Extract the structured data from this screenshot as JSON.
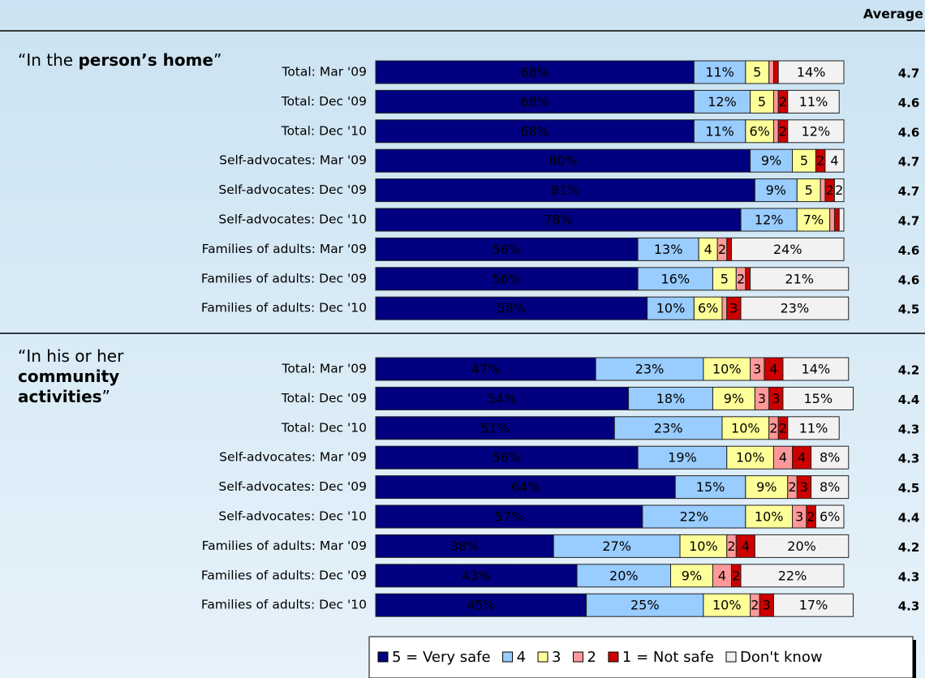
{
  "average_header": "Average",
  "chart_data": [
    {
      "type": "bar",
      "orientation": "horizontal",
      "stacked": true,
      "title_lines": [
        [
          {
            "text": "“In the "
          },
          {
            "text": "person’s home",
            "bold": true
          },
          {
            "text": "”"
          }
        ]
      ],
      "categories": [
        "Total: Mar '09",
        "Total: Dec '09",
        "Total: Dec '10",
        "Self-advocates: Mar '09",
        "Self-advocates: Dec '09",
        "Self-advocates: Dec '10",
        "Families of adults: Mar '09",
        "Families of adults: Dec '09",
        "Families of adults: Dec '10"
      ],
      "xlim": [
        0,
        100
      ],
      "averages": [
        4.7,
        4.6,
        4.6,
        4.7,
        4.7,
        4.7,
        4.6,
        4.6,
        4.5
      ],
      "series": [
        {
          "name": "5 = Very safe",
          "color": "#000080",
          "values": [
            68,
            68,
            68,
            80,
            81,
            78,
            56,
            56,
            58
          ],
          "value_labels": [
            "68%",
            "68%",
            "68%",
            "80%",
            "81%",
            "78%",
            "56%",
            "56%",
            "58%"
          ]
        },
        {
          "name": "4",
          "color": "#99ccff",
          "values": [
            11,
            12,
            11,
            9,
            9,
            12,
            13,
            16,
            10
          ],
          "value_labels": [
            "11%",
            "12%",
            "11%",
            "9%",
            "9%",
            "12%",
            "13%",
            "16%",
            "10%"
          ]
        },
        {
          "name": "3",
          "color": "#ffff99",
          "values": [
            5,
            5,
            6,
            5,
            5,
            7,
            4,
            5,
            6
          ],
          "value_labels": [
            "5",
            "5",
            "6%",
            "5",
            "5",
            "7%",
            "4",
            "5",
            "6%"
          ]
        },
        {
          "name": "2",
          "color": "#ff9999",
          "values": [
            1,
            1,
            1,
            0,
            1,
            1,
            2,
            2,
            1
          ],
          "value_labels": [
            null,
            null,
            null,
            null,
            null,
            null,
            "2",
            "2",
            null
          ]
        },
        {
          "name": "1 = Not safe",
          "color": "#cc0000",
          "values": [
            1,
            2,
            2,
            2,
            2,
            1,
            1,
            1,
            3
          ],
          "value_labels": [
            null,
            "2",
            "2",
            "2",
            "2",
            null,
            null,
            null,
            "3"
          ]
        },
        {
          "name": "Don't know",
          "color": "#f2f2f2",
          "values": [
            14,
            11,
            12,
            4,
            2,
            1,
            24,
            21,
            23
          ],
          "value_labels": [
            "14%",
            "11%",
            "12%",
            "4",
            "2",
            null,
            "24%",
            "21%",
            "23%"
          ]
        }
      ]
    },
    {
      "type": "bar",
      "orientation": "horizontal",
      "stacked": true,
      "title_lines": [
        [
          {
            "text": "“In his or her"
          }
        ],
        [
          {
            "text": "community",
            "bold": true
          }
        ],
        [
          {
            "text": "activities",
            "bold": true
          },
          {
            "text": "”"
          }
        ]
      ],
      "categories": [
        "Total: Mar '09",
        "Total: Dec '09",
        "Total: Dec '10",
        "Self-advocates: Mar '09",
        "Self-advocates: Dec '09",
        "Self-advocates: Dec '10",
        "Families of adults: Mar '09",
        "Families of adults: Dec '09",
        "Families of adults: Dec '10"
      ],
      "xlim": [
        0,
        100
      ],
      "averages": [
        4.2,
        4.4,
        4.3,
        4.3,
        4.5,
        4.4,
        4.2,
        4.3,
        4.3
      ],
      "series": [
        {
          "name": "5 = Very safe",
          "color": "#000080",
          "values": [
            47,
            54,
            51,
            56,
            64,
            57,
            38,
            43,
            45
          ],
          "value_labels": [
            "47%",
            "54%",
            "51%",
            "56%",
            "64%",
            "57%",
            "38%",
            "43%",
            "45%"
          ]
        },
        {
          "name": "4",
          "color": "#99ccff",
          "values": [
            23,
            18,
            23,
            19,
            15,
            22,
            27,
            20,
            25
          ],
          "value_labels": [
            "23%",
            "18%",
            "23%",
            "19%",
            "15%",
            "22%",
            "27%",
            "20%",
            "25%"
          ]
        },
        {
          "name": "3",
          "color": "#ffff99",
          "values": [
            10,
            9,
            10,
            10,
            9,
            10,
            10,
            9,
            10
          ],
          "value_labels": [
            "10%",
            "9%",
            "10%",
            "10%",
            "9%",
            "10%",
            "10%",
            "9%",
            "10%"
          ]
        },
        {
          "name": "2",
          "color": "#ff9999",
          "values": [
            3,
            3,
            2,
            4,
            2,
            3,
            2,
            4,
            2
          ],
          "value_labels": [
            "3",
            "3",
            "2",
            "4",
            "2",
            "3",
            "2",
            "4",
            "2"
          ]
        },
        {
          "name": "1 = Not safe",
          "color": "#cc0000",
          "values": [
            4,
            3,
            2,
            4,
            3,
            2,
            4,
            2,
            3
          ],
          "value_labels": [
            "4",
            "3",
            "2",
            "4",
            "3",
            "2",
            "4",
            "2",
            "3"
          ]
        },
        {
          "name": "Don't know",
          "color": "#f2f2f2",
          "values": [
            14,
            15,
            11,
            8,
            8,
            6,
            20,
            22,
            17
          ],
          "value_labels": [
            "14%",
            "15%",
            "11%",
            "8%",
            "8%",
            "6%",
            "20%",
            "22%",
            "17%"
          ]
        }
      ]
    }
  ]
}
